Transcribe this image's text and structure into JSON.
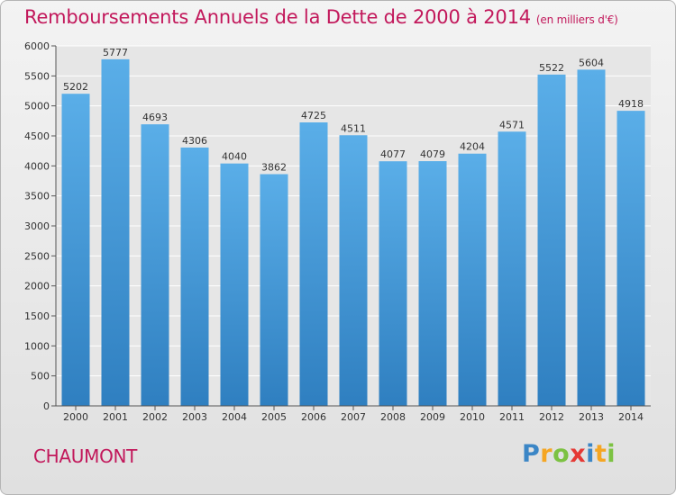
{
  "title": "Remboursements Annuels de la Dette de 2000 à 2014",
  "subtitle": "(en milliers d'€)",
  "place": "CHAUMONT",
  "logo": {
    "letters": [
      "P",
      "r",
      "o",
      "x",
      "i",
      "t",
      "i"
    ],
    "colors": [
      "#3b86c6",
      "#f5a623",
      "#7cc242",
      "#e53935",
      "#3b86c6",
      "#f5a623",
      "#7cc242"
    ]
  },
  "chart_data": {
    "type": "bar",
    "categories": [
      "2000",
      "2001",
      "2002",
      "2003",
      "2004",
      "2005",
      "2006",
      "2007",
      "2008",
      "2009",
      "2010",
      "2011",
      "2012",
      "2013",
      "2014"
    ],
    "values": [
      5202,
      5777,
      4693,
      4306,
      4040,
      3862,
      4725,
      4511,
      4077,
      4079,
      4204,
      4571,
      5522,
      5604,
      4918
    ],
    "ylim": [
      0,
      6000
    ],
    "yticks": [
      0,
      500,
      1000,
      1500,
      2000,
      2500,
      3000,
      3500,
      4000,
      4500,
      5000,
      5500,
      6000
    ],
    "grid": true,
    "colors": {
      "bar_top": "#5aaee8",
      "bar_bottom": "#2f7fc0",
      "grid": "#ffffff",
      "axis": "#555555",
      "title": "#c2185b"
    }
  }
}
